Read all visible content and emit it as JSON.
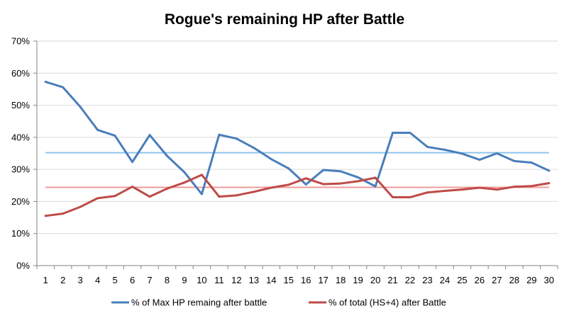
{
  "chart_data": {
    "type": "line",
    "title": "Rogue's remaining HP after Battle",
    "xlabel": "",
    "ylabel": "",
    "x": [
      1,
      2,
      3,
      4,
      5,
      6,
      7,
      8,
      9,
      10,
      11,
      12,
      13,
      14,
      15,
      16,
      17,
      18,
      19,
      20,
      21,
      22,
      23,
      24,
      25,
      26,
      27,
      28,
      29,
      30
    ],
    "ylim": [
      0,
      70
    ],
    "yticks": [
      0,
      10,
      20,
      30,
      40,
      50,
      60,
      70
    ],
    "ytick_labels": [
      "0%",
      "10%",
      "20%",
      "30%",
      "40%",
      "50%",
      "60%",
      "70%"
    ],
    "grid": true,
    "legend_position": "bottom",
    "series": [
      {
        "name": "% of Max HP remaing after battle",
        "color": "#4a7ebb",
        "values": [
          57.3,
          55.6,
          49.5,
          42.3,
          40.5,
          32.3,
          40.7,
          34.2,
          29.1,
          22.3,
          40.8,
          39.6,
          36.7,
          33.2,
          30.3,
          25.3,
          29.8,
          29.4,
          27.5,
          24.7,
          41.4,
          41.4,
          37.0,
          36.1,
          34.9,
          33.0,
          35.0,
          32.6,
          32.1,
          29.6
        ]
      },
      {
        "name": "% of total (HS+4) after Battle",
        "color": "#be4b48",
        "values": [
          15.5,
          16.2,
          18.3,
          21.0,
          21.7,
          24.6,
          21.5,
          24.0,
          25.9,
          28.3,
          21.5,
          21.9,
          23.0,
          24.3,
          25.2,
          27.2,
          25.4,
          25.6,
          26.3,
          27.4,
          21.3,
          21.3,
          22.8,
          23.3,
          23.7,
          24.3,
          23.7,
          24.6,
          24.8,
          25.7
        ]
      }
    ],
    "reference_lines": [
      {
        "value": 35.2,
        "color": "#8fc4ec"
      },
      {
        "value": 24.4,
        "color": "#ee9d9a"
      }
    ]
  }
}
